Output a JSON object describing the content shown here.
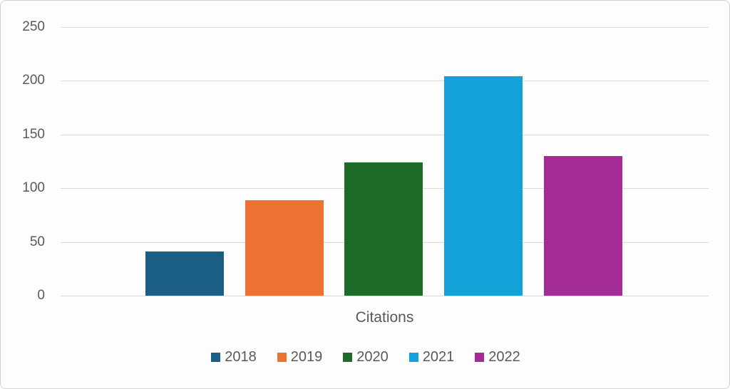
{
  "chart_data": {
    "type": "bar",
    "categories": [
      "Citations"
    ],
    "series": [
      {
        "name": "2018",
        "values": [
          41
        ],
        "color": "#1A5F83"
      },
      {
        "name": "2019",
        "values": [
          89
        ],
        "color": "#EC7331"
      },
      {
        "name": "2020",
        "values": [
          124
        ],
        "color": "#1E6B27"
      },
      {
        "name": "2021",
        "values": [
          204
        ],
        "color": "#14A0D9"
      },
      {
        "name": "2022",
        "values": [
          130
        ],
        "color": "#A22B96"
      }
    ],
    "title": "",
    "xlabel": "Citations",
    "ylabel": "",
    "ylim": [
      0,
      250
    ],
    "yticks": [
      0,
      50,
      100,
      150,
      200,
      250
    ],
    "ytick_labels": [
      "0",
      "50",
      "100",
      "150",
      "200",
      "250"
    ],
    "grid": true,
    "gridline_color": "#D9D9D9",
    "legend_position": "bottom",
    "legend_labels": [
      "2018",
      "2019",
      "2020",
      "2021",
      "2022"
    ],
    "text_color": "#595959",
    "background_color": "#FDFDFD"
  }
}
